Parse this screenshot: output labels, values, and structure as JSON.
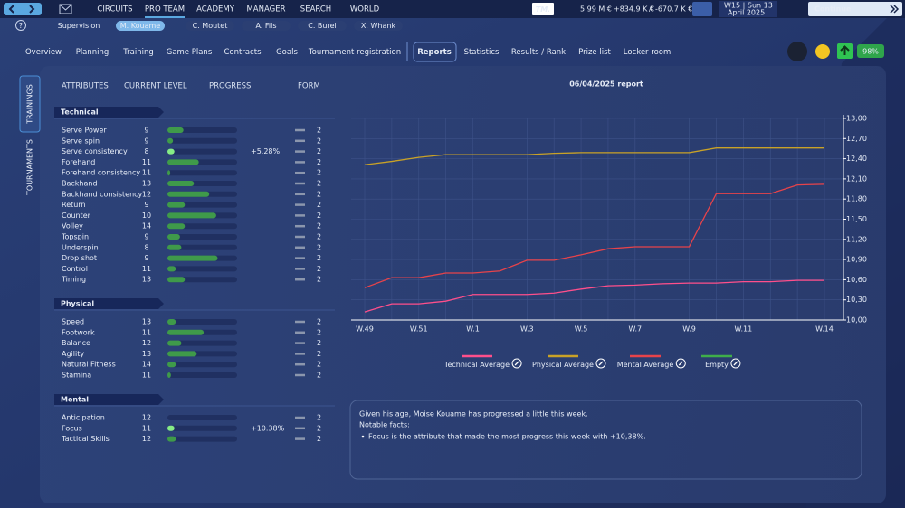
{
  "nav": {
    "items": [
      "CIRCUITS",
      "PRO TEAM",
      "ACADEMY",
      "MANAGER",
      "SEARCH",
      "WORLD"
    ],
    "active": 1
  },
  "finance": {
    "logo": "TM.",
    "balance": "5.99 M €",
    "income": "+834.9 K €",
    "separator": "/",
    "expense": "-670.7 K €"
  },
  "date": {
    "week": "W15 | Sun 13",
    "month": "April 2025"
  },
  "continue": "Continue",
  "help": "?",
  "players": {
    "items": [
      "Supervision",
      "M. Kouame",
      "C. Moutet",
      "A. Fils",
      "C. Burel",
      "X. Whank"
    ],
    "active": 1
  },
  "menu": {
    "items": [
      "Overview",
      "Planning",
      "Training",
      "Game Plans",
      "Contracts",
      "Goals",
      "Tournament registration",
      "Reports",
      "Statistics",
      "Results / Rank",
      "Prize list",
      "Locker room"
    ],
    "active": 7
  },
  "morale": "98%",
  "side_tabs": [
    "TRAININGS",
    "TOURNAMENTS"
  ],
  "headers": [
    "ATTRIBUTES",
    "CURRENT LEVEL",
    "PROGRESS",
    "FORM"
  ],
  "groups": [
    {
      "name": "Technical",
      "attributes": [
        {
          "name": "Serve Power",
          "level": 9,
          "progress": 23,
          "form": 2
        },
        {
          "name": "Serve spin",
          "level": 9,
          "progress": 8,
          "form": 2
        },
        {
          "name": "Serve consistency",
          "level": 8,
          "progress": 10,
          "form": 2,
          "change": "+5.28%"
        },
        {
          "name": "Forehand",
          "level": 11,
          "progress": 45,
          "form": 2
        },
        {
          "name": "Forehand consistency",
          "level": 11,
          "progress": 4,
          "form": 2
        },
        {
          "name": "Backhand",
          "level": 13,
          "progress": 38,
          "form": 2
        },
        {
          "name": "Backhand consistency",
          "level": 12,
          "progress": 60,
          "form": 2
        },
        {
          "name": "Return",
          "level": 9,
          "progress": 25,
          "form": 2
        },
        {
          "name": "Counter",
          "level": 10,
          "progress": 70,
          "form": 2
        },
        {
          "name": "Volley",
          "level": 14,
          "progress": 25,
          "form": 2
        },
        {
          "name": "Topspin",
          "level": 9,
          "progress": 18,
          "form": 2
        },
        {
          "name": "Underspin",
          "level": 8,
          "progress": 20,
          "form": 2
        },
        {
          "name": "Drop shot",
          "level": 9,
          "progress": 72,
          "form": 2
        },
        {
          "name": "Control",
          "level": 11,
          "progress": 12,
          "form": 2
        },
        {
          "name": "Timing",
          "level": 13,
          "progress": 25,
          "form": 2
        }
      ]
    },
    {
      "name": "Physical",
      "attributes": [
        {
          "name": "Speed",
          "level": 13,
          "progress": 12,
          "form": 2
        },
        {
          "name": "Footwork",
          "level": 11,
          "progress": 52,
          "form": 2
        },
        {
          "name": "Balance",
          "level": 12,
          "progress": 20,
          "form": 2
        },
        {
          "name": "Agility",
          "level": 13,
          "progress": 42,
          "form": 2
        },
        {
          "name": "Natural Fitness",
          "level": 14,
          "progress": 12,
          "form": 2
        },
        {
          "name": "Stamina",
          "level": 11,
          "progress": 5,
          "form": 2
        }
      ]
    },
    {
      "name": "Mental",
      "attributes": [
        {
          "name": "Anticipation",
          "level": 12,
          "progress": 0,
          "form": 2
        },
        {
          "name": "Focus",
          "level": 11,
          "progress": 10,
          "form": 2,
          "change": "+10.38%"
        },
        {
          "name": "Tactical Skills",
          "level": 12,
          "progress": 12,
          "form": 2
        }
      ]
    }
  ],
  "report_title": "06/04/2025 report",
  "chart_data": {
    "type": "line",
    "categories": [
      "W.49",
      null,
      "W.51",
      null,
      "W.1",
      null,
      "W.3",
      null,
      "W.5",
      null,
      "W.7",
      null,
      "W.9",
      null,
      "W.11",
      null,
      null,
      "W.14"
    ],
    "series": [
      {
        "name": "Technical Average",
        "color": "#ff4f8b",
        "values": [
          10.12,
          10.24,
          10.24,
          10.28,
          10.38,
          10.38,
          10.38,
          10.4,
          10.46,
          10.51,
          10.52,
          10.54,
          10.55,
          10.55,
          10.57,
          10.57,
          10.59,
          10.59
        ]
      },
      {
        "name": "Physical Average",
        "color": "#c9a227",
        "values": [
          12.31,
          12.36,
          12.42,
          12.46,
          12.46,
          12.46,
          12.46,
          12.48,
          12.49,
          12.49,
          12.49,
          12.49,
          12.49,
          12.56,
          12.56,
          12.56,
          12.56,
          12.56
        ]
      },
      {
        "name": "Mental Average",
        "color": "#e8434a",
        "values": [
          10.48,
          10.63,
          10.63,
          10.7,
          10.7,
          10.73,
          10.89,
          10.89,
          10.97,
          11.06,
          11.09,
          11.09,
          11.09,
          11.88,
          11.88,
          11.88,
          12.01,
          12.02
        ]
      },
      {
        "name": "Empty",
        "color": "#3fae4a",
        "values": [
          null,
          null,
          null,
          null,
          null,
          null,
          null,
          null,
          null,
          null,
          null,
          null,
          null,
          null,
          null,
          null,
          null,
          null
        ]
      }
    ],
    "ylim": [
      10,
      13
    ],
    "yticks": [
      {
        "value": 10,
        "label": "10,00"
      },
      {
        "value": 10.3,
        "label": "10,30"
      },
      {
        "value": 10.6,
        "label": "10,60"
      },
      {
        "value": 10.9,
        "label": "10,90"
      },
      {
        "value": 11.2,
        "label": "11,20"
      },
      {
        "value": 11.5,
        "label": "11,50"
      },
      {
        "value": 11.8,
        "label": "11,80"
      },
      {
        "value": 12.1,
        "label": "12,10"
      },
      {
        "value": 12.4,
        "label": "12,40"
      },
      {
        "value": 12.7,
        "label": "12,70"
      },
      {
        "value": 13,
        "label": "13,00"
      }
    ],
    "grid": true,
    "legend": "bottom"
  },
  "report": {
    "lines": [
      "Given his age, Moise Kouame has progressed a little this week.",
      "Notable facts:"
    ],
    "bullets": [
      "Focus is the attribute that made the most progress this week with +10,38%."
    ]
  }
}
